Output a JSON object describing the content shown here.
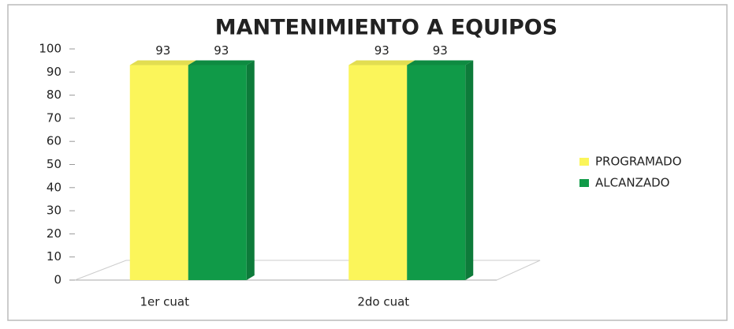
{
  "chart_data": {
    "type": "bar",
    "title": "MANTENIMIENTO A EQUIPOS",
    "categories": [
      "1er cuat",
      "2do cuat"
    ],
    "series": [
      {
        "name": "PROGRAMADO",
        "color": "#fbf55a",
        "values": [
          93,
          93
        ]
      },
      {
        "name": "ALCANZADO",
        "color": "#109a48",
        "values": [
          93,
          93
        ]
      }
    ],
    "ylim": [
      0,
      100
    ],
    "yticks": [
      0,
      10,
      20,
      30,
      40,
      50,
      60,
      70,
      80,
      90,
      100
    ],
    "legend": "right",
    "grid": false
  }
}
